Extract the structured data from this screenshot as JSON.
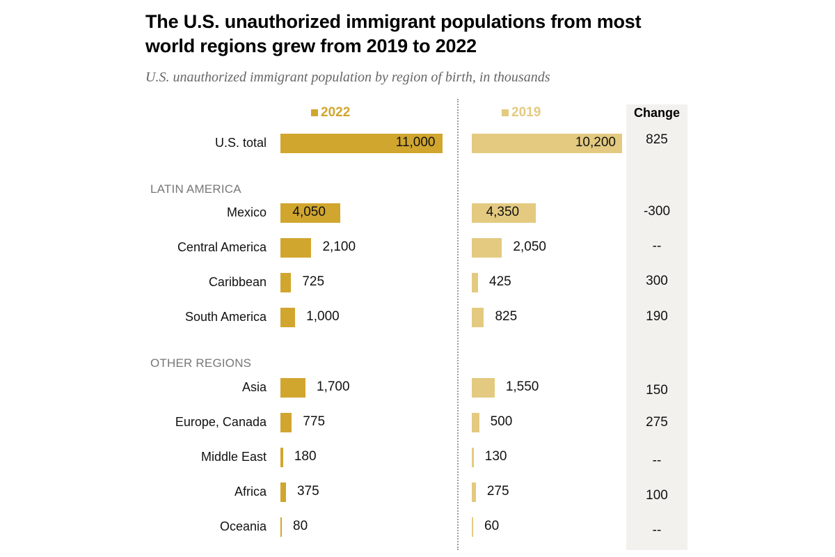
{
  "colors": {
    "y2022": "#d1a62f",
    "y2019": "#e3ca80",
    "change_bg": "#f3f1ed"
  },
  "title": "The U.S. unauthorized immigrant populations from most world regions grew from 2019 to 2022",
  "subtitle": "U.S. unauthorized immigrant population by region of birth, in thousands",
  "chart_data": {
    "type": "bar",
    "orientation": "horizontal",
    "title": "The U.S. unauthorized immigrant populations from most world regions grew from 2019 to 2022",
    "subtitle": "U.S. unauthorized immigrant population by region of birth, in thousands",
    "legend": [
      "2022",
      "2019"
    ],
    "change_header": "Change",
    "groups": [
      "",
      "LATIN AMERICA",
      "OTHER REGIONS"
    ],
    "categories": [
      "U.S. total",
      "Mexico",
      "Central America",
      "Caribbean",
      "South America",
      "Asia",
      "Europe, Canada",
      "Middle East",
      "Africa",
      "Oceania"
    ],
    "category_groups": [
      "",
      "LATIN AMERICA",
      "LATIN AMERICA",
      "LATIN AMERICA",
      "LATIN AMERICA",
      "OTHER REGIONS",
      "OTHER REGIONS",
      "OTHER REGIONS",
      "OTHER REGIONS",
      "OTHER REGIONS"
    ],
    "series": [
      {
        "name": "2022",
        "values": [
          11000,
          4050,
          2100,
          725,
          1000,
          1700,
          775,
          180,
          375,
          80
        ],
        "labels": [
          "11,000",
          "4,050",
          "2,100",
          "725",
          "1,000",
          "1,700",
          "775",
          "180",
          "375",
          "80"
        ]
      },
      {
        "name": "2019",
        "values": [
          10200,
          4350,
          2050,
          425,
          825,
          1550,
          500,
          130,
          275,
          60
        ],
        "labels": [
          "10,200",
          "4,350",
          "2,050",
          "425",
          "825",
          "1,550",
          "500",
          "130",
          "275",
          "60"
        ]
      }
    ],
    "change": [
      "825",
      "-300",
      "--",
      "300",
      "190",
      "150",
      "275",
      "--",
      "100",
      "--"
    ],
    "xlim": [
      0,
      11000
    ]
  }
}
